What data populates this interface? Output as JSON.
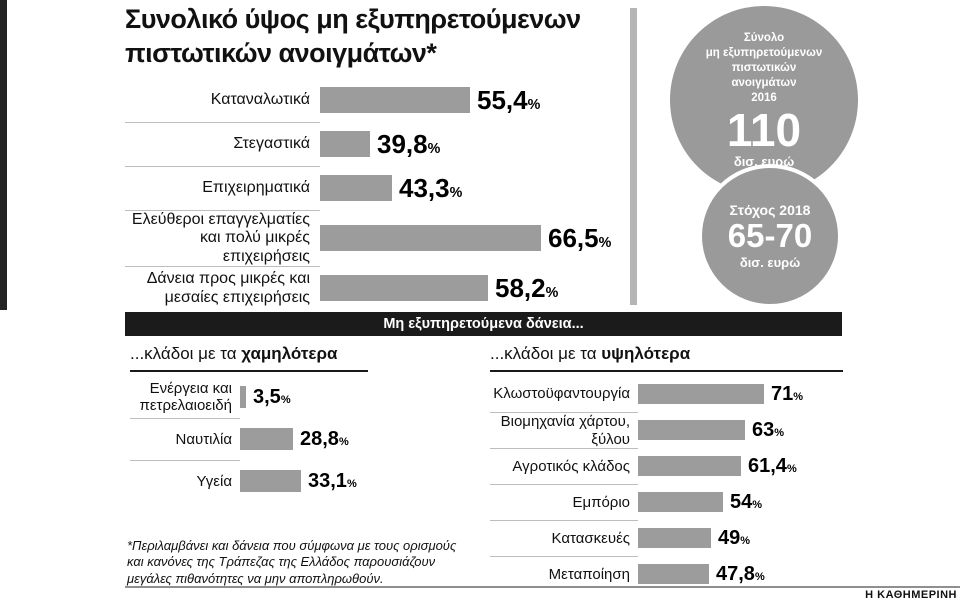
{
  "title": {
    "line1": "Συνολικό ύψος μη εξυπηρετούμενων",
    "line2": "πιστωτικών ανοιγμάτων*"
  },
  "chart_data": [
    {
      "type": "bar",
      "name": "npe-by-category",
      "categories": [
        "Καταναλωτικά",
        "Στεγαστικά",
        "Επιχειρηματικά",
        "Ελεύθεροι επαγγελματίες και πολύ μικρές επιχειρήσεις",
        "Δάνεια προς μικρές και μεσαίες επιχειρήσεις"
      ],
      "values": [
        55.4,
        39.8,
        43.3,
        66.5,
        58.2
      ],
      "value_labels": [
        "55,4",
        "39,8",
        "43,3",
        "66,5",
        "58,2"
      ],
      "unit": "%"
    },
    {
      "type": "bar",
      "name": "lowest-sectors",
      "title": "...κλάδοι με τα χαμηλότερα",
      "categories": [
        "Ενέργεια και πετρελαιοειδή",
        "Ναυτιλία",
        "Υγεία"
      ],
      "values": [
        3.5,
        28.8,
        33.1
      ],
      "value_labels": [
        "3,5",
        "28,8",
        "33,1"
      ],
      "unit": "%"
    },
    {
      "type": "bar",
      "name": "highest-sectors",
      "title": "...κλάδοι με τα υψηλότερα",
      "categories": [
        "Κλωστοϋφαντουργία",
        "Βιομηχανία χάρτου, ξύλου",
        "Αγροτικός κλάδος",
        "Εμπόριο",
        "Κατασκευές",
        "Μεταποίηση"
      ],
      "values": [
        71,
        63,
        61.4,
        54,
        49,
        47.8
      ],
      "value_labels": [
        "71",
        "63",
        "61,4",
        "54",
        "49",
        "47,8"
      ],
      "unit": "%"
    }
  ],
  "badges": {
    "total_2016": {
      "label_lines": [
        "Σύνολο",
        "μη εξυπηρετούμενων",
        "πιστωτικών",
        "ανοιγμάτων",
        "2016"
      ],
      "value": "110",
      "unit": "δισ. ευρώ"
    },
    "target_2018": {
      "label": "Στόχος 2018",
      "value": "65-70",
      "unit": "δισ. ευρώ"
    }
  },
  "banner": "Μη εξυπηρετούμενα δάνεια...",
  "section_headers": {
    "low_prefix": "...κλάδοι με τα ",
    "low_bold": "χαμηλότερα",
    "high_prefix": "...κλάδοι με τα ",
    "high_bold": "υψηλότερα"
  },
  "footnote": "*Περιλαμβάνει και δάνεια που σύμφωνα με τους ορισμούς και κανόνες της Τράπεζας της Ελλάδος παρουσιάζουν μεγάλες πιθανότητες να μην αποπληρωθούν.",
  "credit": "Η ΚΑΘΗΜΕΡΙΝΗ",
  "colors": {
    "bar": "#9c9c9c",
    "circle": "#9a9a9a",
    "banner_bg": "#1b1b1b",
    "divider": "#b5b5b5"
  }
}
